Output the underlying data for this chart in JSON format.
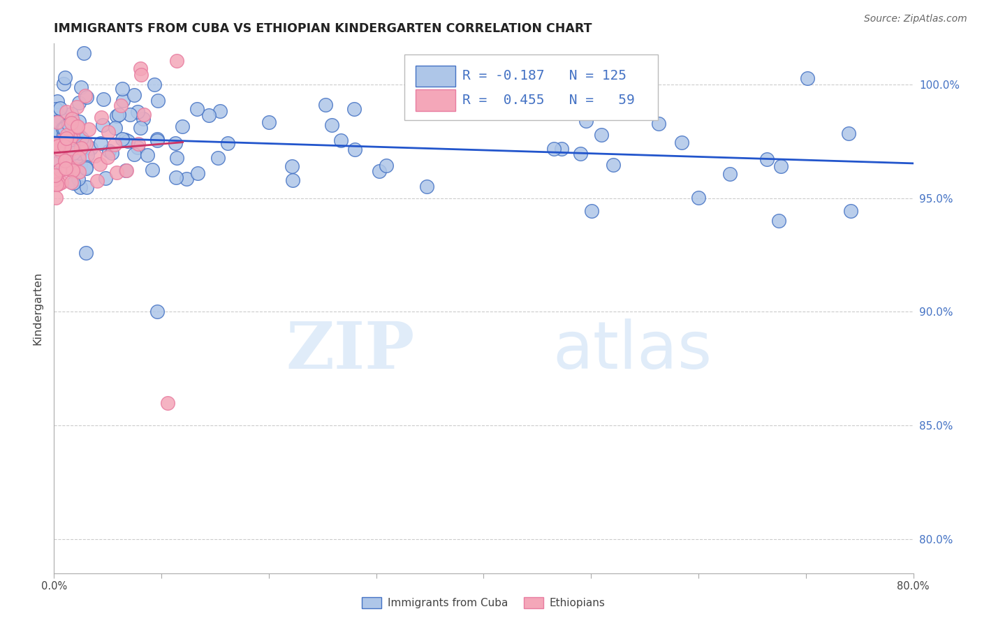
{
  "title": "IMMIGRANTS FROM CUBA VS ETHIOPIAN KINDERGARTEN CORRELATION CHART",
  "source": "Source: ZipAtlas.com",
  "ylabel": "Kindergarten",
  "ytick_labels": [
    "80.0%",
    "85.0%",
    "90.0%",
    "95.0%",
    "100.0%"
  ],
  "ytick_values": [
    0.8,
    0.85,
    0.9,
    0.95,
    1.0
  ],
  "xmin": 0.0,
  "xmax": 0.8,
  "ymin": 0.785,
  "ymax": 1.018,
  "blue_R": -0.187,
  "blue_N": 125,
  "pink_R": 0.455,
  "pink_N": 59,
  "blue_color": "#4472c4",
  "pink_color": "#e87ca0",
  "blue_dot_face": "#aec6e8",
  "pink_dot_face": "#f4a7b9",
  "blue_line_color": "#2255cc",
  "pink_line_color": "#cc3366",
  "watermark_color": "#ddeeff",
  "legend_text_color": "#4472c4",
  "right_axis_color": "#4472c4",
  "grid_color": "#cccccc",
  "title_color": "#222222",
  "source_color": "#666666",
  "ylabel_color": "#444444"
}
